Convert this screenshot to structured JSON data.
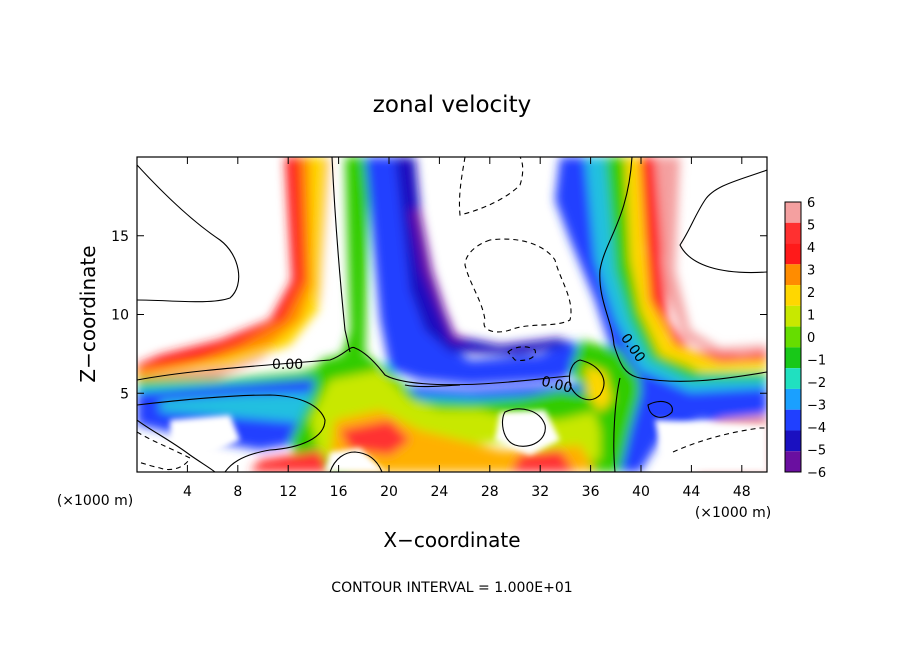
{
  "chart_data": {
    "type": "heatmap",
    "title": "zonal velocity",
    "xlabel": "X−coordinate",
    "ylabel": "Z−coordinate",
    "x_unit_left": "(×1000 m)",
    "x_unit_right": "(×1000 m)",
    "xlim": [
      0,
      50
    ],
    "ylim": [
      0,
      20
    ],
    "x_ticks": [
      4,
      8,
      12,
      16,
      20,
      24,
      28,
      32,
      36,
      40,
      44,
      48
    ],
    "x_tick_labels": [
      "4",
      "8",
      "12",
      "16",
      "20",
      "24",
      "28",
      "32",
      "36",
      "40",
      "44",
      "48"
    ],
    "y_ticks": [
      5,
      10,
      15
    ],
    "y_tick_labels": [
      "5",
      "10",
      "15"
    ],
    "colorbar": {
      "levels": [
        6,
        5,
        4,
        3,
        2,
        1,
        0,
        -1,
        -2,
        -3,
        -4,
        -5,
        -6
      ],
      "labels": [
        "6",
        "5",
        "4",
        "3",
        "2",
        "1",
        "0",
        "−1",
        "−2",
        "−3",
        "−4",
        "−5",
        "−6"
      ],
      "colors": [
        "#f4a0a0",
        "#ff3030",
        "#ff1a1a",
        "#ff8c00",
        "#ffd700",
        "#c8e800",
        "#66dd00",
        "#18c818",
        "#20e0c0",
        "#1aa0ff",
        "#2040ff",
        "#1a10c0",
        "#6a0fa0"
      ]
    },
    "contour_labels": [
      "0.00",
      "0.00",
      "0.00"
    ],
    "footnote": "CONTOUR INTERVAL = 1.000E+01"
  }
}
